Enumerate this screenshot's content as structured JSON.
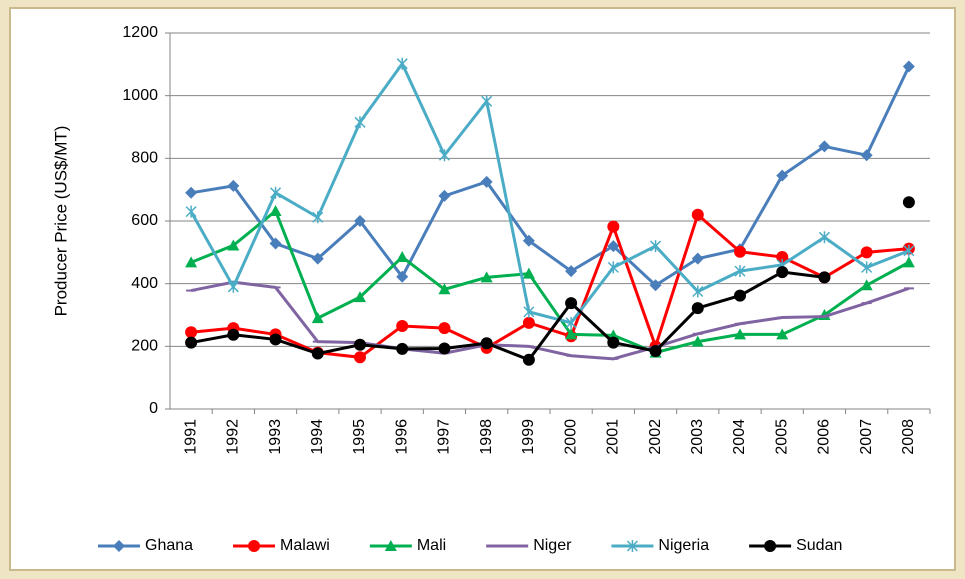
{
  "chart_data": {
    "type": "line",
    "ylabel": "Producer Price (US$/MT)",
    "categories": [
      "1991",
      "1992",
      "1993",
      "1994",
      "1995",
      "1996",
      "1997",
      "1998",
      "1999",
      "2000",
      "2001",
      "2002",
      "2003",
      "2004",
      "2005",
      "2006",
      "2007",
      "2008"
    ],
    "series": [
      {
        "name": "Ghana",
        "color": "#4a7ebb",
        "marker": "diamond",
        "values": [
          690,
          712,
          528,
          480,
          600,
          422,
          680,
          725,
          537,
          440,
          520,
          395,
          480,
          510,
          745,
          838,
          810,
          1093
        ]
      },
      {
        "name": "Malawi",
        "color": "#ff0000",
        "marker": "circle",
        "values": [
          245,
          258,
          238,
          180,
          165,
          265,
          258,
          195,
          275,
          232,
          582,
          200,
          620,
          502,
          485,
          420,
          500,
          512
        ]
      },
      {
        "name": "Mali",
        "color": "#00b050",
        "marker": "triangle",
        "values": [
          468,
          522,
          632,
          290,
          357,
          485,
          382,
          420,
          432,
          238,
          235,
          180,
          215,
          238,
          238,
          300,
          395,
          468
        ]
      },
      {
        "name": "Niger",
        "color": "#8064a2",
        "marker": "dash",
        "values": [
          378,
          405,
          388,
          215,
          212,
          192,
          178,
          205,
          200,
          170,
          160,
          198,
          240,
          272,
          292,
          295,
          338,
          385
        ]
      },
      {
        "name": "Nigeria",
        "color": "#4bacc6",
        "marker": "star",
        "values": [
          630,
          390,
          690,
          612,
          915,
          1102,
          810,
          982,
          310,
          275,
          452,
          520,
          375,
          440,
          460,
          548,
          452,
          505
        ]
      },
      {
        "name": "Sudan",
        "color": "#000000",
        "marker": "circle",
        "values": [
          212,
          237,
          222,
          177,
          205,
          192,
          193,
          210,
          157,
          338,
          212,
          185,
          322,
          362,
          437,
          420,
          null,
          660
        ]
      }
    ],
    "ylim": [
      0,
      1200
    ],
    "yticks": [
      0,
      200,
      400,
      600,
      800,
      1000,
      1200
    ],
    "grid": true,
    "legend": "bottom"
  }
}
